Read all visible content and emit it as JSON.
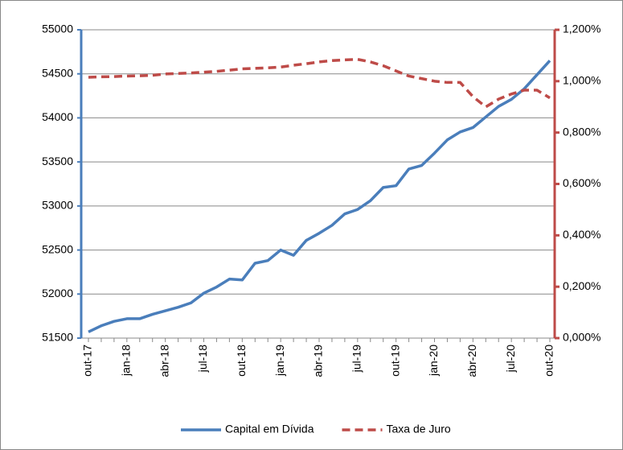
{
  "chart_data": {
    "type": "line",
    "categories": [
      "out-17",
      null,
      null,
      "jan-18",
      null,
      null,
      "abr-18",
      null,
      null,
      "jul-18",
      null,
      null,
      "out-18",
      null,
      null,
      "jan-19",
      null,
      null,
      "abr-19",
      null,
      null,
      "jul-19",
      null,
      null,
      "out-19",
      null,
      null,
      "jan-20",
      null,
      null,
      "abr-20",
      null,
      null,
      "jul-20",
      null,
      null,
      "out-20"
    ],
    "series": [
      {
        "name": "Capital em Dívida",
        "color": "#4a7ebb",
        "axis": "y",
        "values": [
          51570,
          51640,
          51690,
          51720,
          51720,
          51770,
          51810,
          51850,
          51900,
          52010,
          52080,
          52170,
          52160,
          52350,
          52380,
          52500,
          52440,
          52610,
          52690,
          52780,
          52910,
          52960,
          53060,
          53210,
          53230,
          53420,
          53460,
          53600,
          53750,
          53840,
          53890,
          54010,
          54130,
          54210,
          54330,
          54490,
          54650
        ]
      },
      {
        "name": "Taxa de Juro",
        "color": "#be4b48",
        "axis": "y2",
        "dashed": true,
        "values": [
          1.015,
          1.017,
          1.018,
          1.02,
          1.021,
          1.023,
          1.028,
          1.03,
          1.032,
          1.035,
          1.038,
          1.043,
          1.048,
          1.05,
          1.052,
          1.055,
          1.062,
          1.068,
          1.075,
          1.08,
          1.083,
          1.085,
          1.075,
          1.06,
          1.04,
          1.02,
          1.01,
          1.0,
          0.995,
          0.995,
          0.94,
          0.9,
          0.93,
          0.95,
          0.965,
          0.965,
          0.935
        ]
      }
    ],
    "ylim": [
      51500,
      55000
    ],
    "yticks": [
      51500,
      52000,
      52500,
      53000,
      53500,
      54000,
      54500,
      55000
    ],
    "y2lim": [
      0,
      1.2
    ],
    "y2ticks": [
      {
        "value": 0,
        "label": "0,000%"
      },
      {
        "value": 0.2,
        "label": "0,200%"
      },
      {
        "value": 0.4,
        "label": "0,400%"
      },
      {
        "value": 0.6,
        "label": "0,600%"
      },
      {
        "value": 0.8,
        "label": "0,800%"
      },
      {
        "value": 1.0,
        "label": "1,000%"
      },
      {
        "value": 1.2,
        "label": "1,200%"
      }
    ],
    "grid": true,
    "legend": "bottom"
  }
}
